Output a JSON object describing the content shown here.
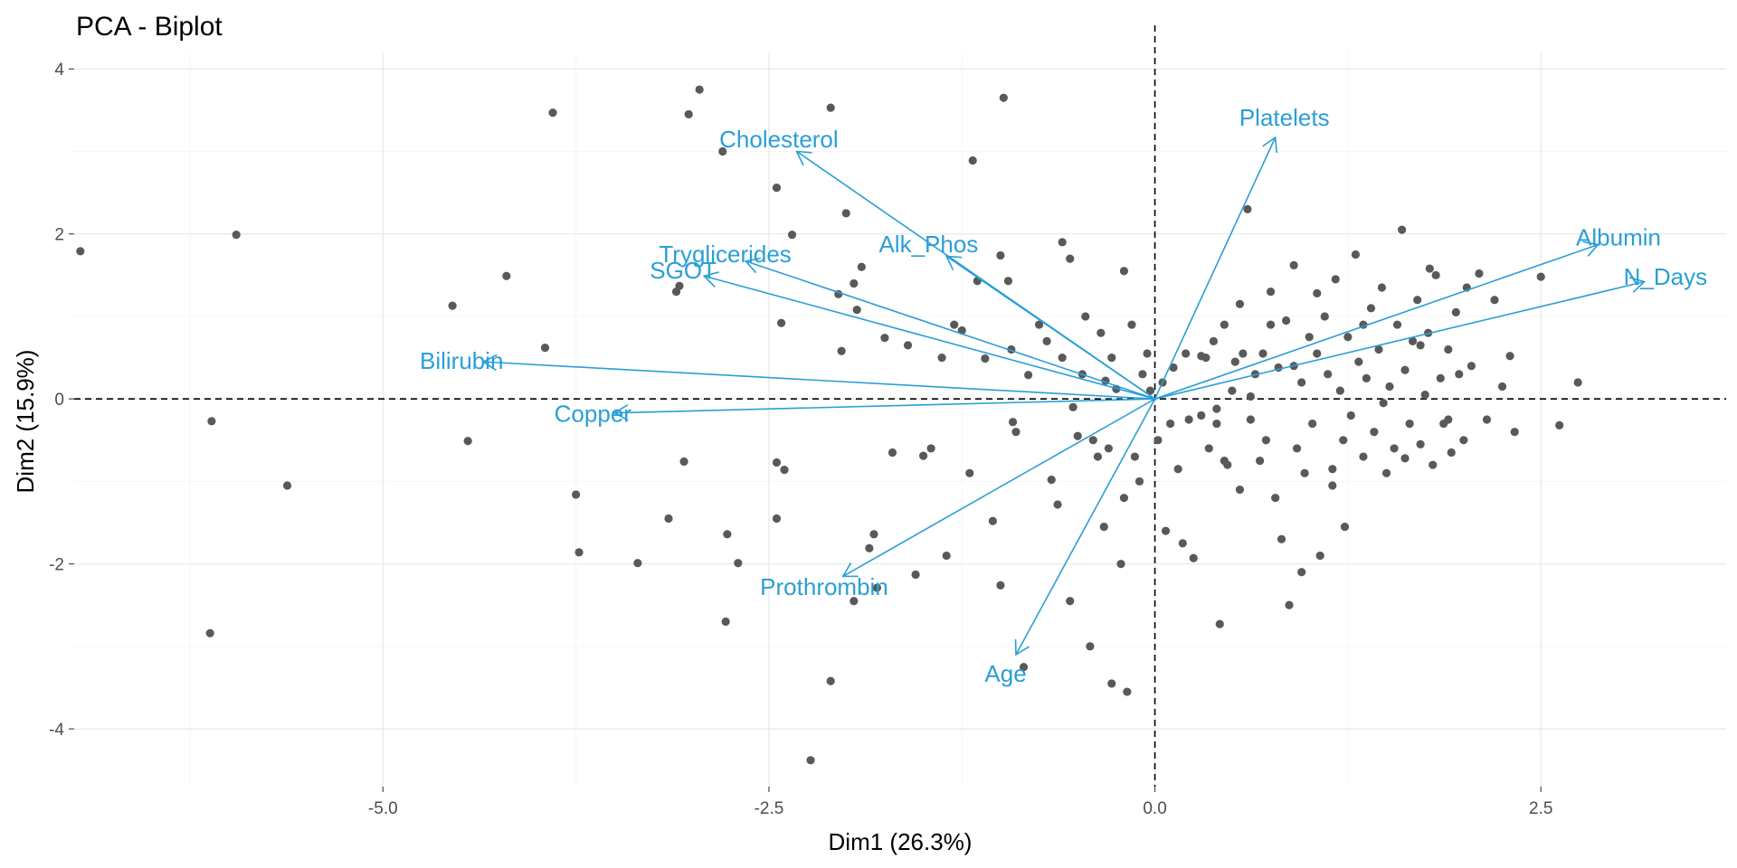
{
  "chart_data": {
    "type": "scatter",
    "title": "PCA - Biplot",
    "xlabel": "Dim1 (26.3%)",
    "ylabel": "Dim2 (15.9%)",
    "xlim": [
      -7.0,
      3.7
    ],
    "ylim": [
      -4.7,
      4.2
    ],
    "x_ticks": [
      -5.0,
      -2.5,
      0.0,
      2.5
    ],
    "x_tick_labels": [
      "-5.0",
      "-2.5",
      "0.0",
      "2.5"
    ],
    "y_ticks": [
      -4,
      -2,
      0,
      2,
      4
    ],
    "y_tick_labels": [
      "-4",
      "-2",
      "0",
      "2",
      "4"
    ],
    "grid": true,
    "reference_lines": {
      "x": 0,
      "y": 0
    },
    "colors": {
      "points": "#595959",
      "variables": "#2a9fd6",
      "grid": "#ebebeb"
    },
    "individuals": [
      [
        -6.96,
        1.79
      ],
      [
        -5.95,
        1.99
      ],
      [
        -6.11,
        -0.27
      ],
      [
        -6.12,
        -2.84
      ],
      [
        -5.62,
        -1.05
      ],
      [
        -4.55,
        1.13
      ],
      [
        -4.45,
        -0.51
      ],
      [
        -4.2,
        1.49
      ],
      [
        -3.95,
        0.62
      ],
      [
        -3.9,
        3.47
      ],
      [
        -3.75,
        -1.16
      ],
      [
        -3.73,
        -1.86
      ],
      [
        -3.35,
        -1.99
      ],
      [
        -3.15,
        -1.45
      ],
      [
        -3.1,
        1.3
      ],
      [
        -3.08,
        1.37
      ],
      [
        -3.05,
        -0.76
      ],
      [
        -3.02,
        3.45
      ],
      [
        -2.95,
        3.75
      ],
      [
        -2.8,
        3.0
      ],
      [
        -2.78,
        -2.7
      ],
      [
        -2.77,
        -1.64
      ],
      [
        -2.7,
        -1.99
      ],
      [
        -2.45,
        2.56
      ],
      [
        -2.45,
        -1.45
      ],
      [
        -2.45,
        -0.77
      ],
      [
        -2.4,
        -0.86
      ],
      [
        -2.42,
        0.92
      ],
      [
        -2.35,
        1.99
      ],
      [
        -2.23,
        -4.38
      ],
      [
        -2.1,
        3.53
      ],
      [
        -2.05,
        1.27
      ],
      [
        -2.03,
        0.58
      ],
      [
        -2.0,
        2.25
      ],
      [
        -1.95,
        1.4
      ],
      [
        -1.93,
        1.08
      ],
      [
        -1.9,
        1.6
      ],
      [
        -1.85,
        -1.81
      ],
      [
        -1.82,
        -1.64
      ],
      [
        -1.8,
        -2.29
      ],
      [
        -1.75,
        0.74
      ],
      [
        -1.7,
        -0.65
      ],
      [
        -1.6,
        0.65
      ],
      [
        -1.55,
        -2.13
      ],
      [
        -1.5,
        -0.69
      ],
      [
        -1.45,
        -0.6
      ],
      [
        -1.38,
        0.5
      ],
      [
        -1.35,
        -1.9
      ],
      [
        -1.3,
        0.9
      ],
      [
        -1.25,
        0.83
      ],
      [
        -1.18,
        2.89
      ],
      [
        -1.15,
        1.43
      ],
      [
        -1.1,
        0.49
      ],
      [
        -1.05,
        -1.48
      ],
      [
        -1.0,
        -2.26
      ],
      [
        -1.0,
        1.74
      ],
      [
        -0.98,
        3.65
      ],
      [
        -0.95,
        1.43
      ],
      [
        -0.93,
        0.6
      ],
      [
        -0.92,
        -0.28
      ],
      [
        -0.85,
        -3.25
      ],
      [
        -0.82,
        0.29
      ],
      [
        -0.75,
        0.9
      ],
      [
        -0.7,
        0.7
      ],
      [
        -0.67,
        -0.98
      ],
      [
        -0.63,
        -1.28
      ],
      [
        -0.6,
        0.5
      ],
      [
        -0.55,
        1.7
      ],
      [
        -0.53,
        -0.1
      ],
      [
        -0.5,
        -0.45
      ],
      [
        -0.47,
        0.3
      ],
      [
        -0.45,
        1.0
      ],
      [
        -0.42,
        -3.0
      ],
      [
        -0.4,
        -0.5
      ],
      [
        -0.37,
        -0.7
      ],
      [
        -0.35,
        0.8
      ],
      [
        -0.33,
        -1.55
      ],
      [
        -0.3,
        -0.6
      ],
      [
        -0.28,
        0.5
      ],
      [
        -0.25,
        0.12
      ],
      [
        -0.22,
        -2.0
      ],
      [
        -0.2,
        -1.2
      ],
      [
        -0.18,
        -3.55
      ],
      [
        -0.15,
        0.9
      ],
      [
        -0.13,
        -0.7
      ],
      [
        -0.1,
        -1.0
      ],
      [
        -0.08,
        0.3
      ],
      [
        -0.05,
        0.55
      ],
      [
        -0.03,
        0.1
      ],
      [
        0.02,
        -0.5
      ],
      [
        0.05,
        0.2
      ],
      [
        0.07,
        -1.6
      ],
      [
        0.1,
        -0.3
      ],
      [
        0.12,
        0.38
      ],
      [
        0.15,
        -0.85
      ],
      [
        0.2,
        0.55
      ],
      [
        0.22,
        -0.25
      ],
      [
        0.25,
        -1.93
      ],
      [
        0.3,
        -0.2
      ],
      [
        0.33,
        0.5
      ],
      [
        0.35,
        -0.6
      ],
      [
        0.38,
        0.7
      ],
      [
        0.4,
        -0.3
      ],
      [
        0.42,
        -2.73
      ],
      [
        0.45,
        0.9
      ],
      [
        0.47,
        -0.8
      ],
      [
        0.5,
        0.1
      ],
      [
        0.52,
        0.45
      ],
      [
        0.55,
        -1.1
      ],
      [
        0.57,
        0.55
      ],
      [
        0.6,
        2.3
      ],
      [
        0.62,
        -0.25
      ],
      [
        0.65,
        0.3
      ],
      [
        0.68,
        -0.75
      ],
      [
        0.7,
        0.55
      ],
      [
        0.72,
        -0.5
      ],
      [
        0.75,
        1.3
      ],
      [
        0.78,
        -1.2
      ],
      [
        0.8,
        0.38
      ],
      [
        0.82,
        -1.7
      ],
      [
        0.85,
        0.95
      ],
      [
        0.87,
        -2.5
      ],
      [
        0.9,
        0.4
      ],
      [
        0.92,
        -0.6
      ],
      [
        0.95,
        0.2
      ],
      [
        0.97,
        -0.9
      ],
      [
        1.0,
        0.75
      ],
      [
        1.02,
        -0.3
      ],
      [
        1.05,
        0.55
      ],
      [
        1.07,
        -1.9
      ],
      [
        1.1,
        1.0
      ],
      [
        1.12,
        0.3
      ],
      [
        1.15,
        -0.85
      ],
      [
        1.17,
        1.45
      ],
      [
        1.2,
        0.1
      ],
      [
        1.22,
        -0.5
      ],
      [
        1.25,
        0.75
      ],
      [
        1.27,
        -0.2
      ],
      [
        1.3,
        1.75
      ],
      [
        1.32,
        0.45
      ],
      [
        1.35,
        -0.7
      ],
      [
        1.37,
        0.25
      ],
      [
        1.4,
        1.1
      ],
      [
        1.42,
        -0.4
      ],
      [
        1.45,
        0.6
      ],
      [
        1.47,
        1.35
      ],
      [
        1.5,
        -0.9
      ],
      [
        1.52,
        0.15
      ],
      [
        1.55,
        -0.6
      ],
      [
        1.57,
        0.9
      ],
      [
        1.6,
        2.05
      ],
      [
        1.62,
        0.35
      ],
      [
        1.65,
        -0.3
      ],
      [
        1.67,
        0.7
      ],
      [
        1.7,
        1.2
      ],
      [
        1.72,
        -0.55
      ],
      [
        1.75,
        0.05
      ],
      [
        1.77,
        0.8
      ],
      [
        1.8,
        -0.8
      ],
      [
        1.82,
        1.5
      ],
      [
        1.85,
        0.25
      ],
      [
        1.87,
        -0.3
      ],
      [
        1.9,
        0.6
      ],
      [
        1.92,
        -0.65
      ],
      [
        1.95,
        1.05
      ],
      [
        1.97,
        0.3
      ],
      [
        2.0,
        -0.5
      ],
      [
        2.02,
        1.35
      ],
      [
        2.05,
        0.4
      ],
      [
        2.1,
        1.52
      ],
      [
        2.15,
        -0.25
      ],
      [
        2.2,
        1.2
      ],
      [
        2.25,
        0.15
      ],
      [
        2.3,
        0.52
      ],
      [
        2.33,
        -0.4
      ],
      [
        2.5,
        1.48
      ],
      [
        2.62,
        -0.32
      ],
      [
        2.74,
        0.2
      ],
      [
        0.3,
        0.52
      ],
      [
        0.9,
        1.62
      ],
      [
        1.05,
        1.28
      ],
      [
        0.55,
        1.15
      ],
      [
        -0.6,
        1.9
      ],
      [
        -0.2,
        1.55
      ],
      [
        0.75,
        0.9
      ],
      [
        1.35,
        0.9
      ],
      [
        1.72,
        0.65
      ],
      [
        0.95,
        -2.1
      ],
      [
        1.23,
        -1.55
      ],
      [
        -0.9,
        -0.4
      ],
      [
        -1.95,
        -2.45
      ],
      [
        -2.1,
        -3.42
      ],
      [
        -1.2,
        -0.9
      ],
      [
        -0.55,
        -2.45
      ],
      [
        -0.28,
        -3.45
      ],
      [
        0.18,
        -1.75
      ],
      [
        1.48,
        -0.05
      ],
      [
        1.15,
        -1.05
      ],
      [
        0.45,
        -0.75
      ],
      [
        1.62,
        -0.72
      ],
      [
        1.9,
        -0.25
      ],
      [
        1.78,
        1.58
      ],
      [
        0.62,
        0.03
      ],
      [
        -0.32,
        0.22
      ],
      [
        0.4,
        -0.12
      ]
    ],
    "variables": [
      {
        "name": "Cholesterol",
        "x": -2.32,
        "y": 3.0
      },
      {
        "name": "Platelets",
        "x": 0.78,
        "y": 3.17
      },
      {
        "name": "Albumin",
        "x": 2.87,
        "y": 1.87
      },
      {
        "name": "N_Days",
        "x": 3.17,
        "y": 1.42
      },
      {
        "name": "Tryglicerides",
        "x": -2.65,
        "y": 1.67
      },
      {
        "name": "SGOT",
        "x": -2.92,
        "y": 1.49
      },
      {
        "name": "Alk_Phos",
        "x": -1.35,
        "y": 1.73
      },
      {
        "name": "Bilirubin",
        "x": -4.35,
        "y": 0.45
      },
      {
        "name": "Copper",
        "x": -3.5,
        "y": -0.17
      },
      {
        "name": "Prothrombin",
        "x": -2.02,
        "y": -2.15
      },
      {
        "name": "Age",
        "x": -0.9,
        "y": -3.1
      }
    ]
  }
}
